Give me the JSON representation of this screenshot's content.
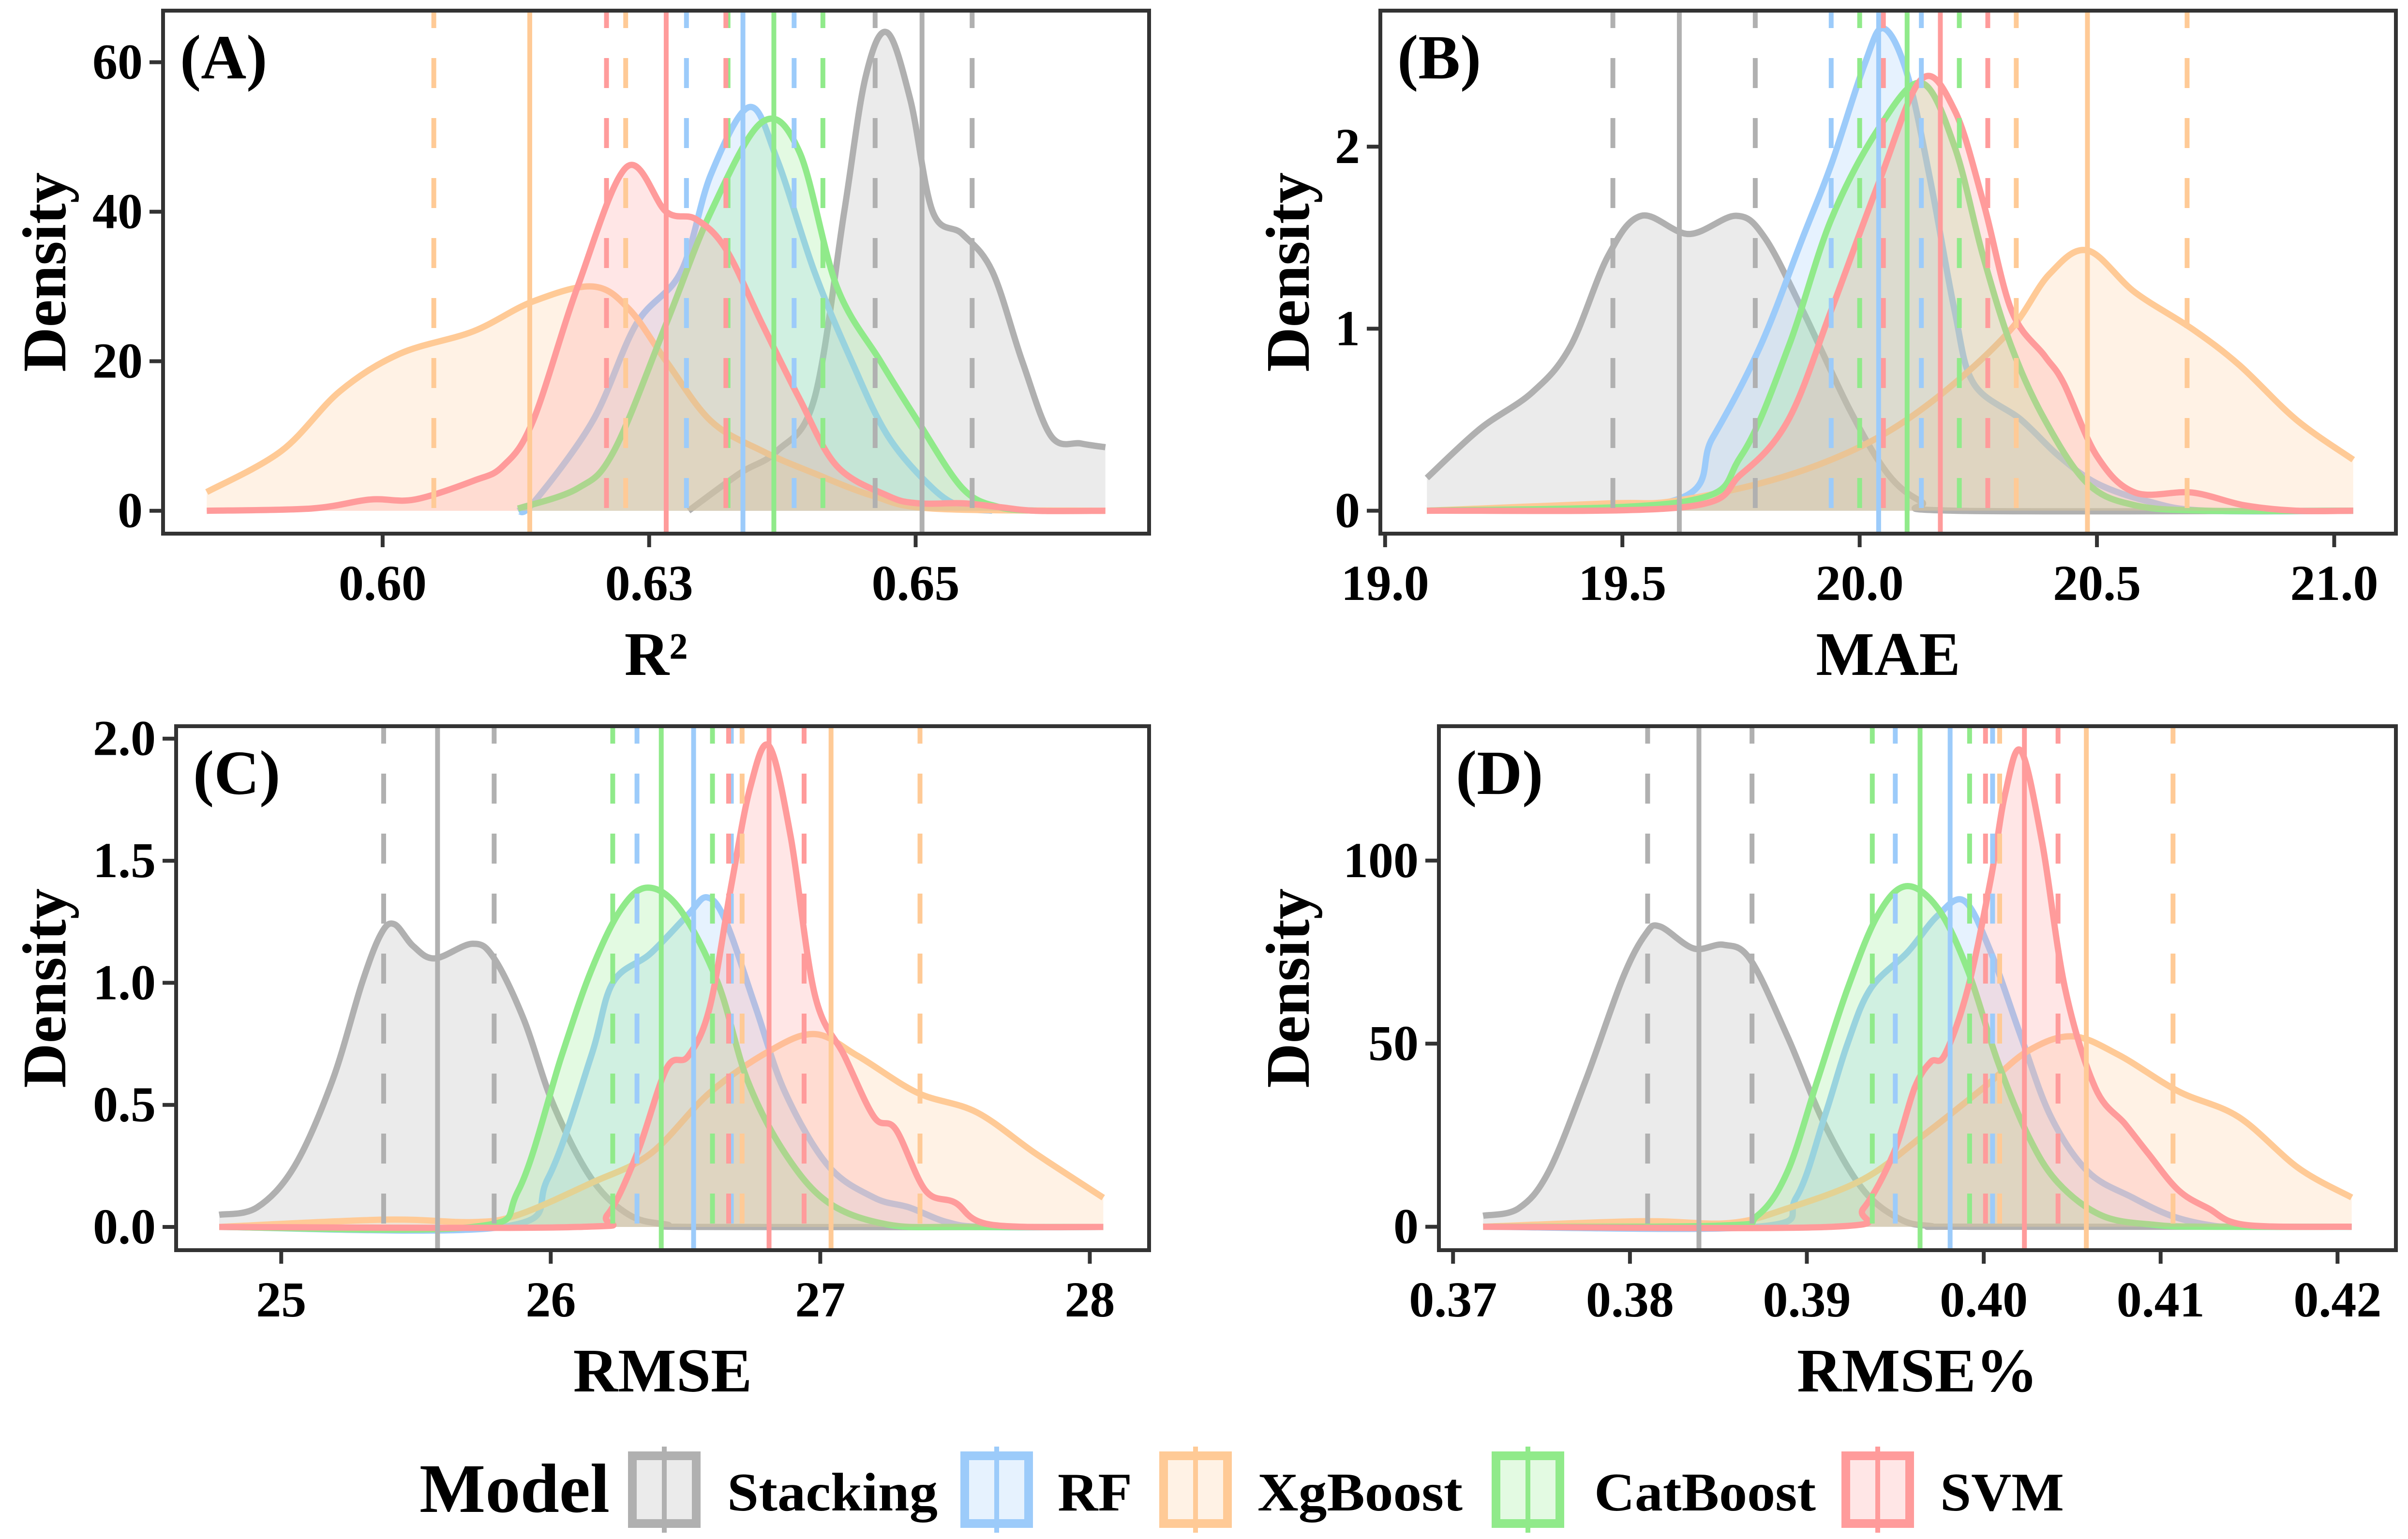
{
  "legend": {
    "title": "Model",
    "items": [
      {
        "name": "Stacking",
        "color": "#B0B0B0"
      },
      {
        "name": "RF",
        "color": "#9CCBFA"
      },
      {
        "name": "XgBoost",
        "color": "#FFCA96"
      },
      {
        "name": "CatBoost",
        "color": "#90EA8A"
      },
      {
        "name": "SVM",
        "color": "#FF9B9B"
      }
    ]
  },
  "chart_data": [
    {
      "type": "area",
      "panel_label": "(A)",
      "xlabel": "R²",
      "ylabel": "Density",
      "xlim": [
        0.5794,
        0.6719
      ],
      "ylim": [
        -3.06,
        66.9
      ],
      "grid": false,
      "xticks": [
        {
          "value": 0.6,
          "label": "0.60"
        },
        {
          "value": 0.625,
          "label": "0.63"
        },
        {
          "value": 0.65,
          "label": "0.65"
        }
      ],
      "yticks": [
        {
          "value": 0,
          "label": "0"
        },
        {
          "value": 20,
          "label": "20"
        },
        {
          "value": 40,
          "label": "40"
        },
        {
          "value": 60,
          "label": "60"
        }
      ],
      "series": [
        {
          "name": "Stacking",
          "x": [
            0.6287,
            0.6335,
            0.637,
            0.6405,
            0.6433,
            0.6453,
            0.6473,
            0.6495,
            0.6516,
            0.6544,
            0.6572,
            0.66,
            0.6627,
            0.6655,
            0.6678
          ],
          "y": [
            0,
            5,
            8,
            15,
            40,
            58,
            64,
            55,
            40,
            37,
            32,
            20,
            10,
            9,
            8.5
          ],
          "quantiles": [
            0.6462,
            0.6506,
            0.6553
          ]
        },
        {
          "name": "RF",
          "x": [
            0.6127,
            0.6141,
            0.6197,
            0.6238,
            0.628,
            0.6308,
            0.6344,
            0.637,
            0.6405,
            0.644,
            0.6474,
            0.6516,
            0.6544,
            0.6572
          ],
          "y": [
            0,
            1,
            12,
            25,
            32,
            45,
            54,
            47,
            32,
            20,
            10,
            3,
            0.5,
            0
          ],
          "quantiles": [
            0.6285,
            0.6338,
            0.6386
          ]
        },
        {
          "name": "XgBoost",
          "x": [
            0.5835,
            0.5905,
            0.596,
            0.6016,
            0.6085,
            0.6141,
            0.6197,
            0.6231,
            0.6266,
            0.6308,
            0.6356,
            0.6405,
            0.646,
            0.6516,
            0.6678
          ],
          "y": [
            2.5,
            8,
            16,
            21,
            24,
            28,
            30,
            27,
            20,
            12,
            8,
            5,
            2,
            0.3,
            0
          ],
          "quantiles": [
            0.6048,
            0.6138,
            0.6228
          ]
        },
        {
          "name": "CatBoost",
          "x": [
            0.6127,
            0.6183,
            0.6217,
            0.6266,
            0.6308,
            0.6356,
            0.6391,
            0.6426,
            0.6467,
            0.6502,
            0.6544,
            0.6578,
            0.6613
          ],
          "y": [
            0.3,
            3,
            8,
            25,
            40,
            52,
            48,
            30,
            20,
            12,
            3,
            0.5,
            0
          ],
          "quantiles": [
            0.6324,
            0.6367,
            0.6413
          ]
        },
        {
          "name": "SVM",
          "x": [
            0.5835,
            0.5933,
            0.5988,
            0.603,
            0.6085,
            0.6113,
            0.6141,
            0.6183,
            0.6229,
            0.6266,
            0.6294,
            0.6322,
            0.6356,
            0.6391,
            0.6426,
            0.6474,
            0.6502,
            0.6544,
            0.6578,
            0.6613,
            0.6678
          ],
          "y": [
            0,
            0.3,
            1.5,
            1.5,
            4,
            6,
            12,
            30,
            46,
            40,
            39,
            35,
            25,
            15,
            6,
            2,
            1,
            1,
            0.5,
            0,
            0
          ],
          "quantiles": [
            0.621,
            0.6266,
            0.6322
          ]
        }
      ]
    },
    {
      "type": "area",
      "panel_label": "(B)",
      "xlabel": "MAE",
      "ylabel": "Density",
      "xlim": [
        18.99,
        21.13
      ],
      "ylim": [
        -0.126,
        2.747
      ],
      "grid": false,
      "xticks": [
        {
          "value": 19.0,
          "label": "19.0"
        },
        {
          "value": 19.5,
          "label": "19.5"
        },
        {
          "value": 20.0,
          "label": "20.0"
        },
        {
          "value": 20.5,
          "label": "20.5"
        },
        {
          "value": 21.0,
          "label": "21.0"
        }
      ],
      "yticks": [
        {
          "value": 0,
          "label": "0"
        },
        {
          "value": 1,
          "label": "1"
        },
        {
          "value": 2,
          "label": "2"
        }
      ],
      "series": [
        {
          "name": "Stacking",
          "x": [
            19.088,
            19.2,
            19.31,
            19.39,
            19.47,
            19.54,
            19.64,
            19.74,
            19.8,
            19.88,
            19.98,
            20.06,
            20.13,
            20.2,
            21.04
          ],
          "y": [
            0.18,
            0.45,
            0.65,
            0.9,
            1.4,
            1.62,
            1.52,
            1.62,
            1.5,
            1.1,
            0.55,
            0.2,
            0.05,
            0,
            0
          ],
          "quantiles": [
            19.48,
            19.62,
            19.78
          ]
        },
        {
          "name": "RF",
          "x": [
            19.088,
            19.6,
            19.69,
            19.79,
            19.88,
            19.94,
            20.01,
            20.05,
            20.1,
            20.15,
            20.2,
            20.24,
            20.34,
            20.42,
            20.5,
            20.61,
            20.73,
            21.04
          ],
          "y": [
            0,
            0.05,
            0.4,
            0.9,
            1.5,
            1.9,
            2.45,
            2.65,
            2.4,
            1.8,
            1.1,
            0.7,
            0.5,
            0.3,
            0.15,
            0.05,
            0,
            0
          ],
          "quantiles": [
            19.94,
            20.04,
            20.13
          ]
        },
        {
          "name": "XgBoost",
          "x": [
            19.088,
            19.47,
            19.6,
            19.79,
            19.94,
            20.07,
            20.2,
            20.32,
            20.4,
            20.48,
            20.58,
            20.7,
            20.8,
            20.92,
            21.04
          ],
          "y": [
            0,
            0.04,
            0.05,
            0.15,
            0.28,
            0.45,
            0.7,
            1.0,
            1.3,
            1.43,
            1.2,
            1.0,
            0.8,
            0.5,
            0.28
          ],
          "quantiles": [
            20.33,
            20.48,
            20.69
          ]
        },
        {
          "name": "CatBoost",
          "x": [
            19.088,
            19.63,
            19.75,
            19.85,
            19.94,
            20.04,
            20.13,
            20.2,
            20.26,
            20.32,
            20.39,
            20.48,
            20.58,
            20.73,
            21.04
          ],
          "y": [
            0,
            0.05,
            0.3,
            0.9,
            1.6,
            2.1,
            2.35,
            2.0,
            1.4,
            0.9,
            0.5,
            0.15,
            0.03,
            0,
            0
          ],
          "quantiles": [
            20.0,
            20.1,
            20.21
          ]
        },
        {
          "name": "SVM",
          "x": [
            19.088,
            19.63,
            19.75,
            19.85,
            19.94,
            20.04,
            20.13,
            20.2,
            20.26,
            20.32,
            20.39,
            20.43,
            20.5,
            20.58,
            20.7,
            20.81,
            20.92,
            21.04
          ],
          "y": [
            0,
            0.02,
            0.2,
            0.5,
            1.1,
            1.8,
            2.37,
            2.2,
            1.7,
            1.1,
            0.85,
            0.7,
            0.3,
            0.1,
            0.1,
            0.03,
            0,
            0
          ],
          "quantiles": [
            20.05,
            20.17,
            20.27
          ]
        }
      ]
    },
    {
      "type": "area",
      "panel_label": "(C)",
      "xlabel": "RMSE",
      "ylabel": "Density",
      "xlim": [
        24.61,
        28.22
      ],
      "ylim": [
        -0.095,
        2.051
      ],
      "grid": false,
      "xticks": [
        {
          "value": 25,
          "label": "25"
        },
        {
          "value": 26,
          "label": "26"
        },
        {
          "value": 27,
          "label": "27"
        },
        {
          "value": 28,
          "label": "28"
        }
      ],
      "yticks": [
        {
          "value": 0,
          "label": "0.0"
        },
        {
          "value": 0.5,
          "label": "0.5"
        },
        {
          "value": 1.0,
          "label": "1.0"
        },
        {
          "value": 1.5,
          "label": "1.5"
        },
        {
          "value": 2.0,
          "label": "2.0"
        }
      ],
      "series": [
        {
          "name": "Stacking",
          "x": [
            24.77,
            24.91,
            25.05,
            25.19,
            25.3,
            25.37,
            25.42,
            25.49,
            25.57,
            25.71,
            25.79,
            25.9,
            26.01,
            26.15,
            26.29,
            26.43,
            26.57,
            28.05
          ],
          "y": [
            0.05,
            0.08,
            0.25,
            0.6,
            1.0,
            1.2,
            1.24,
            1.15,
            1.1,
            1.16,
            1.1,
            0.85,
            0.5,
            0.2,
            0.05,
            0.01,
            0,
            0
          ],
          "quantiles": [
            25.38,
            25.58,
            25.79
          ]
        },
        {
          "name": "RF",
          "x": [
            24.77,
            25.82,
            25.99,
            26.15,
            26.23,
            26.37,
            26.51,
            26.58,
            26.65,
            26.76,
            26.87,
            27.03,
            27.2,
            27.33,
            27.47,
            27.61,
            28.05
          ],
          "y": [
            0,
            0,
            0.2,
            0.7,
            1.0,
            1.12,
            1.28,
            1.35,
            1.25,
            0.9,
            0.55,
            0.25,
            0.12,
            0.08,
            0.02,
            0,
            0
          ],
          "quantiles": [
            26.32,
            26.53,
            26.67
          ]
        },
        {
          "name": "XgBoost",
          "x": [
            24.77,
            25.38,
            25.71,
            25.88,
            26.15,
            26.37,
            26.59,
            26.81,
            26.98,
            27.14,
            27.36,
            27.58,
            27.8,
            28.05
          ],
          "y": [
            0,
            0.03,
            0.02,
            0.05,
            0.18,
            0.3,
            0.55,
            0.72,
            0.79,
            0.7,
            0.55,
            0.47,
            0.3,
            0.12
          ],
          "quantiles": [
            26.71,
            27.04,
            27.37
          ]
        },
        {
          "name": "CatBoost",
          "x": [
            24.77,
            25.71,
            25.88,
            26.04,
            26.15,
            26.26,
            26.36,
            26.48,
            26.62,
            26.73,
            26.87,
            27.03,
            27.25,
            27.52,
            28.05
          ],
          "y": [
            0,
            0,
            0.15,
            0.7,
            1.05,
            1.3,
            1.39,
            1.3,
            1.0,
            0.6,
            0.3,
            0.1,
            0.01,
            0,
            0
          ],
          "quantiles": [
            26.23,
            26.41,
            26.6
          ]
        },
        {
          "name": "SVM",
          "x": [
            24.77,
            26.1,
            26.21,
            26.32,
            26.43,
            26.51,
            26.59,
            26.67,
            26.74,
            26.81,
            26.89,
            26.98,
            27.09,
            27.2,
            27.28,
            27.39,
            27.5,
            27.63,
            28.05
          ],
          "y": [
            0,
            0,
            0.05,
            0.3,
            0.65,
            0.7,
            0.9,
            1.4,
            1.8,
            1.97,
            1.6,
            0.95,
            0.7,
            0.45,
            0.4,
            0.15,
            0.1,
            0.01,
            0
          ],
          "quantiles": [
            26.66,
            26.81,
            26.94
          ]
        }
      ]
    },
    {
      "type": "area",
      "panel_label": "(D)",
      "xlabel": "RMSE%",
      "ylabel": "Density",
      "xlim": [
        0.3692,
        0.4233
      ],
      "ylim": [
        -6.4,
        136.7
      ],
      "grid": false,
      "xticks": [
        {
          "value": 0.37,
          "label": "0.37"
        },
        {
          "value": 0.38,
          "label": "0.38"
        },
        {
          "value": 0.39,
          "label": "0.39"
        },
        {
          "value": 0.4,
          "label": "0.40"
        },
        {
          "value": 0.41,
          "label": "0.41"
        },
        {
          "value": 0.42,
          "label": "0.42"
        }
      ],
      "yticks": [
        {
          "value": 0,
          "label": "0"
        },
        {
          "value": 50,
          "label": "50"
        },
        {
          "value": 100,
          "label": "100"
        }
      ],
      "series": [
        {
          "name": "Stacking",
          "x": [
            0.3717,
            0.3737,
            0.3754,
            0.3775,
            0.3796,
            0.3809,
            0.3817,
            0.3836,
            0.3853,
            0.3868,
            0.3889,
            0.391,
            0.3932,
            0.3953,
            0.397,
            0.3991,
            0.4208
          ],
          "y": [
            3,
            5,
            15,
            40,
            68,
            80,
            82,
            76,
            77,
            73,
            52,
            28,
            10,
            2,
            0.2,
            0,
            0
          ],
          "quantiles": [
            0.381,
            0.3839,
            0.3869
          ]
        },
        {
          "name": "RF",
          "x": [
            0.3717,
            0.3872,
            0.3894,
            0.391,
            0.3923,
            0.3936,
            0.3957,
            0.3974,
            0.3989,
            0.4004,
            0.4021,
            0.4038,
            0.4059,
            0.4084,
            0.4106,
            0.4127,
            0.4144,
            0.4208
          ],
          "y": [
            0,
            0,
            8,
            30,
            50,
            65,
            75,
            85,
            89,
            75,
            52,
            30,
            15,
            8,
            3,
            0.5,
            0,
            0
          ],
          "quantiles": [
            0.395,
            0.3981,
            0.4005
          ]
        },
        {
          "name": "XgBoost",
          "x": [
            0.3717,
            0.3805,
            0.3856,
            0.3889,
            0.3932,
            0.3966,
            0.4,
            0.4025,
            0.405,
            0.4076,
            0.411,
            0.4144,
            0.4178,
            0.4208
          ],
          "y": [
            0,
            1.5,
            1,
            5,
            13,
            25,
            38,
            48,
            52,
            47,
            37,
            30,
            16,
            8
          ],
          "quantiles": [
            0.4009,
            0.4058,
            0.4107
          ]
        },
        {
          "name": "CatBoost",
          "x": [
            0.3717,
            0.3851,
            0.3872,
            0.3889,
            0.3906,
            0.3923,
            0.394,
            0.3956,
            0.3974,
            0.3991,
            0.4008,
            0.4025,
            0.4042,
            0.4067,
            0.4097,
            0.4127,
            0.4208
          ],
          "y": [
            0,
            0.3,
            3,
            15,
            40,
            65,
            85,
            93,
            87,
            70,
            45,
            25,
            12,
            3,
            0.5,
            0,
            0
          ],
          "quantiles": [
            0.3937,
            0.3964,
            0.3992
          ]
        },
        {
          "name": "SVM",
          "x": [
            0.3717,
            0.3915,
            0.3932,
            0.3949,
            0.3961,
            0.397,
            0.3978,
            0.3991,
            0.4004,
            0.4012,
            0.4021,
            0.4033,
            0.4046,
            0.4063,
            0.408,
            0.4093,
            0.411,
            0.4127,
            0.4148,
            0.4208
          ],
          "y": [
            0,
            0,
            5,
            20,
            38,
            45,
            47,
            65,
            95,
            118,
            130,
            105,
            65,
            38,
            28,
            20,
            10,
            5,
            0.5,
            0
          ],
          "quantiles": [
            0.4001,
            0.4023,
            0.4042
          ]
        }
      ]
    }
  ]
}
